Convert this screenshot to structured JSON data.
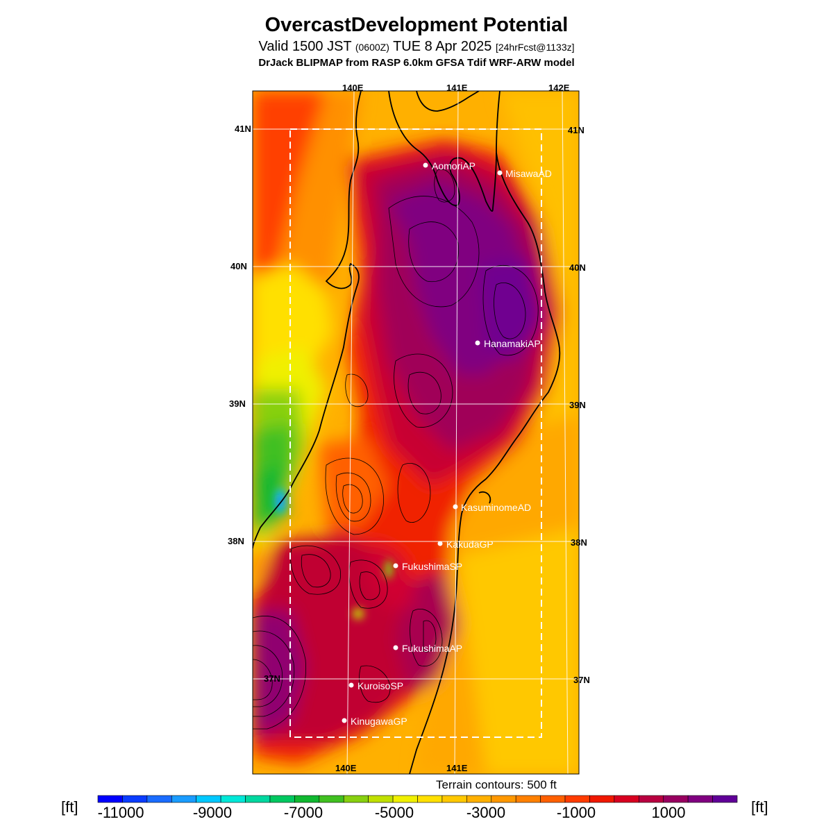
{
  "header": {
    "title": "OvercastDevelopment Potential",
    "valid_main": "Valid 1500 JST",
    "valid_utc": "(0600Z)",
    "valid_date": "TUE 8 Apr 2025",
    "forecast": "[24hrFcst@1133z]",
    "model": "DrJack BLIPMAP from RASP 6.0km GFSA Tdif WRF-ARW model"
  },
  "grid_labels": {
    "top_lon": [
      "140E",
      "141E",
      "142E"
    ],
    "bottom_lon": [
      "140E",
      "141E"
    ],
    "left_lat": [
      "41N",
      "40N",
      "39N",
      "38N",
      "37N"
    ],
    "right_lat": [
      "41N",
      "40N",
      "39N",
      "38N",
      "37N"
    ]
  },
  "stations": [
    {
      "name": "AomoriAP"
    },
    {
      "name": "MisawaAD"
    },
    {
      "name": "HanamakiAP"
    },
    {
      "name": "KasuminomeAD"
    },
    {
      "name": "KakudaGP"
    },
    {
      "name": "FukushimaSP"
    },
    {
      "name": "FukushimaAP"
    },
    {
      "name": "KuroisoSP"
    },
    {
      "name": "KinugawaGP"
    }
  ],
  "footer": {
    "terrain_note": "Terrain contours: 500 ft",
    "unit_left": "[ft]",
    "unit_right": "[ft]"
  },
  "colorbar": {
    "tick_labels": [
      "-11000",
      "-9000",
      "-7000",
      "-5000",
      "-3000",
      "-1000",
      "1000"
    ],
    "colors": [
      "#0000ff",
      "#0a3cff",
      "#1a6cff",
      "#1a9cff",
      "#00c8ff",
      "#00e8d8",
      "#00d8a0",
      "#00c860",
      "#10b830",
      "#40c020",
      "#88d010",
      "#c0e000",
      "#f0f000",
      "#ffe000",
      "#ffc800",
      "#ffb000",
      "#ff9800",
      "#ff8000",
      "#ff6000",
      "#ff3c00",
      "#f01800",
      "#d80020",
      "#b80040",
      "#980060",
      "#800080",
      "#600098"
    ]
  }
}
